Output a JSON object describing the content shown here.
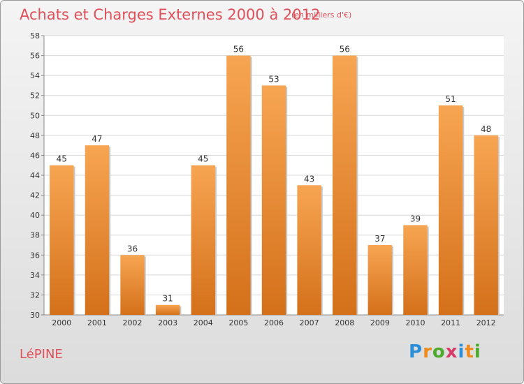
{
  "header": {
    "title": "Achats et Charges Externes 2000 à 2012",
    "subtitle": "(en milliers d'€)"
  },
  "footer": {
    "commune": "LéPINE",
    "logo": {
      "letters": [
        "P",
        "r",
        "o",
        "x",
        "i",
        "t",
        "i"
      ],
      "colors": [
        "#2a8fd8",
        "#f08a1c",
        "#4caa2c",
        "#d93a6a",
        "#2a8fd8",
        "#f08a1c",
        "#4caa2c"
      ]
    }
  },
  "chart_data": {
    "type": "bar",
    "categories": [
      "2000",
      "2001",
      "2002",
      "2003",
      "2004",
      "2005",
      "2006",
      "2007",
      "2008",
      "2009",
      "2010",
      "2011",
      "2012"
    ],
    "values": [
      45,
      47,
      36,
      31,
      45,
      56,
      53,
      43,
      56,
      37,
      39,
      51,
      48
    ],
    "title": "Achats et Charges Externes 2000 à 2012",
    "subtitle": "(en milliers d'€)",
    "ylim": [
      30,
      58
    ],
    "yticks": [
      30,
      32,
      34,
      36,
      38,
      40,
      42,
      44,
      46,
      48,
      50,
      52,
      54,
      56,
      58
    ],
    "grid": true,
    "bar_color": "#f0892a"
  }
}
